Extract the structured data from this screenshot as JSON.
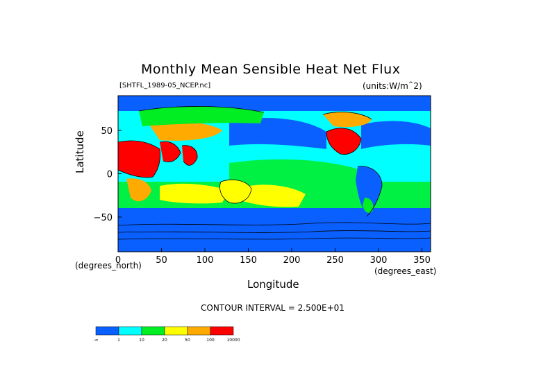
{
  "chart_data": {
    "type": "heatmap",
    "title": "Monthly Mean Sensible Heat Net Flux",
    "dataset": "[SHTFL_1989-05_NCEP.nc]",
    "units": "(units:W/m^2)",
    "xlabel": "Longitude",
    "ylabel": "Latitude",
    "x_unit": "(degrees_east)",
    "y_unit": "(degrees_north)",
    "xlim": [
      0,
      360
    ],
    "ylim": [
      -90,
      90
    ],
    "x_ticks": [
      "0",
      "50",
      "100",
      "150",
      "200",
      "250",
      "300",
      "350"
    ],
    "y_ticks": [
      "50",
      "0",
      "−50"
    ],
    "contour_note": "CONTOUR INTERVAL = 2.500E+01",
    "colorbar": {
      "labels": [
        "-∞",
        "1",
        "10",
        "20",
        "50",
        "100",
        "10000"
      ],
      "colors": [
        "#0a5fff",
        "#00ffff",
        "#00ee22",
        "#ffff00",
        "#ffaa00",
        "#ff0000"
      ]
    },
    "regions": [
      {
        "name": "ocean-base",
        "color": "#00ffff"
      },
      {
        "name": "arctic",
        "color": "#0a5fff"
      },
      {
        "name": "southern-ocean",
        "color": "#0a5fff"
      },
      {
        "name": "antarctica",
        "color": "#0a5fff"
      },
      {
        "name": "north-pacific",
        "color": "#0a5fff"
      },
      {
        "name": "north-atlantic",
        "color": "#0a5fff"
      },
      {
        "name": "subtropical-bands",
        "color": "#00ee22"
      },
      {
        "name": "indian-ocean-subtropics",
        "color": "#ffff00"
      },
      {
        "name": "pacific-subtropics",
        "color": "#ffff00"
      },
      {
        "name": "africa-sahara",
        "color": "#ff0000"
      },
      {
        "name": "arabia",
        "color": "#ff0000"
      },
      {
        "name": "india",
        "color": "#ff0000"
      },
      {
        "name": "central-asia",
        "color": "#ffaa00"
      },
      {
        "name": "siberia",
        "color": "#00ee22"
      },
      {
        "name": "south-africa",
        "color": "#ffaa00"
      },
      {
        "name": "australia",
        "color": "#ffff00"
      },
      {
        "name": "north-america",
        "color": "#ff0000"
      },
      {
        "name": "north-america-plains",
        "color": "#ffaa00"
      },
      {
        "name": "south-america",
        "color": "#0a5fff"
      },
      {
        "name": "patagonia",
        "color": "#00ee22"
      }
    ]
  }
}
